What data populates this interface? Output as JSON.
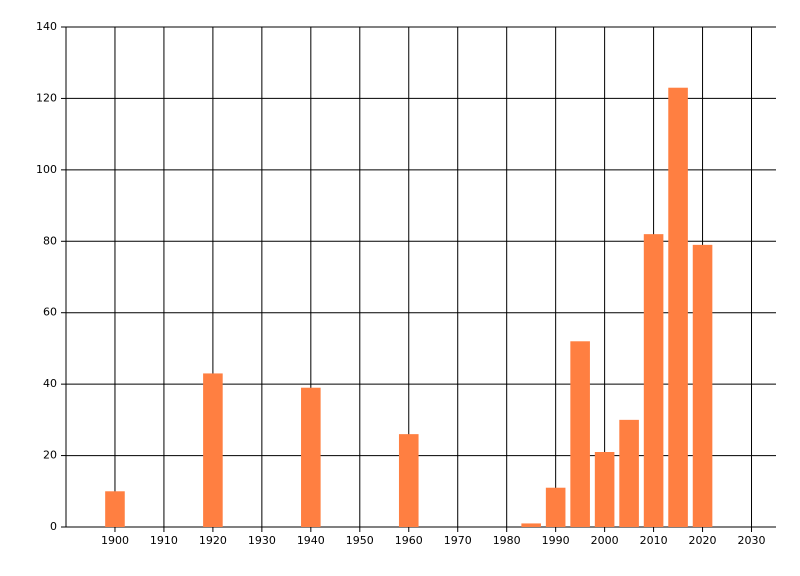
{
  "chart_data": {
    "type": "bar",
    "x": [
      1900,
      1920,
      1940,
      1960,
      1985,
      1990,
      1995,
      2000,
      2005,
      2010,
      2015,
      2020
    ],
    "values": [
      10,
      43,
      39,
      26,
      1,
      11,
      52,
      21,
      30,
      82,
      123,
      79
    ],
    "color": "#ff7f41",
    "xlim": [
      1890,
      2035
    ],
    "xticks": [
      1900,
      1910,
      1920,
      1930,
      1940,
      1950,
      1960,
      1970,
      1980,
      1990,
      2000,
      2010,
      2020,
      2030
    ],
    "ylim": [
      0,
      140
    ],
    "yticks": [
      0,
      20,
      40,
      60,
      80,
      100,
      120,
      140
    ],
    "grid": true
  }
}
